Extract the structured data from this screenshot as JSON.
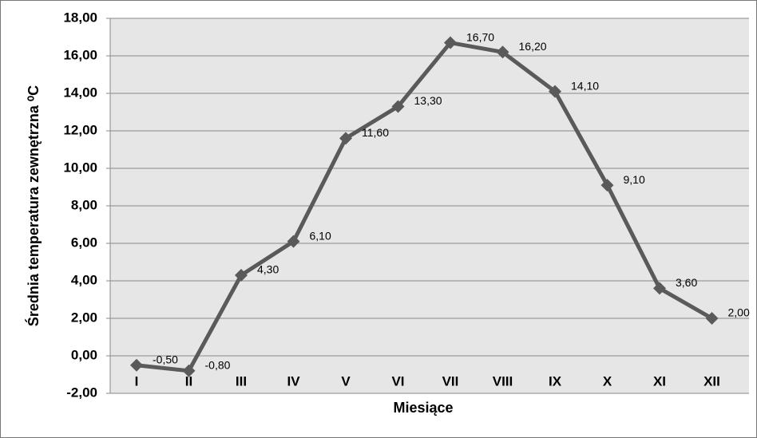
{
  "chart_data": {
    "type": "line",
    "y_axis_label": "Średnia temperatura zewnętrzna ⁰C",
    "x_axis_label": "Miesiące",
    "categories": [
      "I",
      "II",
      "III",
      "IV",
      "V",
      "VI",
      "VII",
      "VIII",
      "IX",
      "X",
      "XI",
      "XII"
    ],
    "series": [
      {
        "color": "#5a5a5a",
        "values": [
          -0.5,
          -0.8,
          4.3,
          6.1,
          11.6,
          13.3,
          16.7,
          16.2,
          14.1,
          9.1,
          3.6,
          2.0
        ],
        "value_labels": [
          "-0,50",
          "-0,80",
          "4,30",
          "6,10",
          "11,60",
          "13,30",
          "16,70",
          "16,20",
          "14,10",
          "9,10",
          "3,60",
          "2,00"
        ]
      }
    ],
    "ylim": [
      -2,
      18
    ],
    "yticks": [
      {
        "value": -2,
        "label": "-2,00"
      },
      {
        "value": 0,
        "label": "0,00"
      },
      {
        "value": 2,
        "label": "2,00"
      },
      {
        "value": 4,
        "label": "4,00"
      },
      {
        "value": 6,
        "label": "6,00"
      },
      {
        "value": 8,
        "label": "8,00"
      },
      {
        "value": 10,
        "label": "10,00"
      },
      {
        "value": 12,
        "label": "12,00"
      },
      {
        "value": 14,
        "label": "14,00"
      },
      {
        "value": 16,
        "label": "16,00"
      },
      {
        "value": 18,
        "label": "18,00"
      }
    ],
    "grid": true
  }
}
